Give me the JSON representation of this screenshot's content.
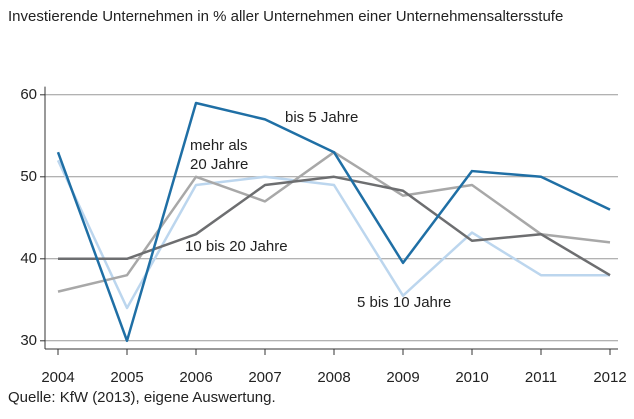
{
  "chart_data": {
    "type": "line",
    "title": "Investierende Unternehmen in % aller Unternehmen einer Unternehmensaltersstufe",
    "source": "Quelle: KfW (2013), eigene Auswertung.",
    "x": [
      2004,
      2005,
      2006,
      2007,
      2008,
      2009,
      2010,
      2011,
      2012
    ],
    "xlim": [
      2004,
      2012
    ],
    "xticks": [
      2004,
      2005,
      2006,
      2007,
      2008,
      2009,
      2010,
      2011,
      2012
    ],
    "ylim": [
      29,
      61
    ],
    "yticks": [
      30,
      40,
      50,
      60
    ],
    "grid": true,
    "series": [
      {
        "name": "bis 5 Jahre",
        "color": "#1f6fa5",
        "values": [
          53,
          30,
          59,
          57,
          53,
          39.5,
          50.7,
          50,
          46
        ]
      },
      {
        "name": "5 bis 10 Jahre",
        "color": "#bcd6ee",
        "values": [
          52,
          34,
          49,
          50,
          49,
          35.5,
          43.2,
          38,
          38
        ]
      },
      {
        "name": "10 bis 20 Jahre",
        "color": "#6d6e70",
        "values": [
          40,
          40,
          43,
          49,
          50,
          48.3,
          42.2,
          43,
          38
        ]
      },
      {
        "name": "mehr als 20 Jahre",
        "color": "#a8a8a8",
        "values": [
          36,
          38,
          50,
          47,
          53,
          47.7,
          49,
          43,
          42
        ]
      }
    ]
  }
}
